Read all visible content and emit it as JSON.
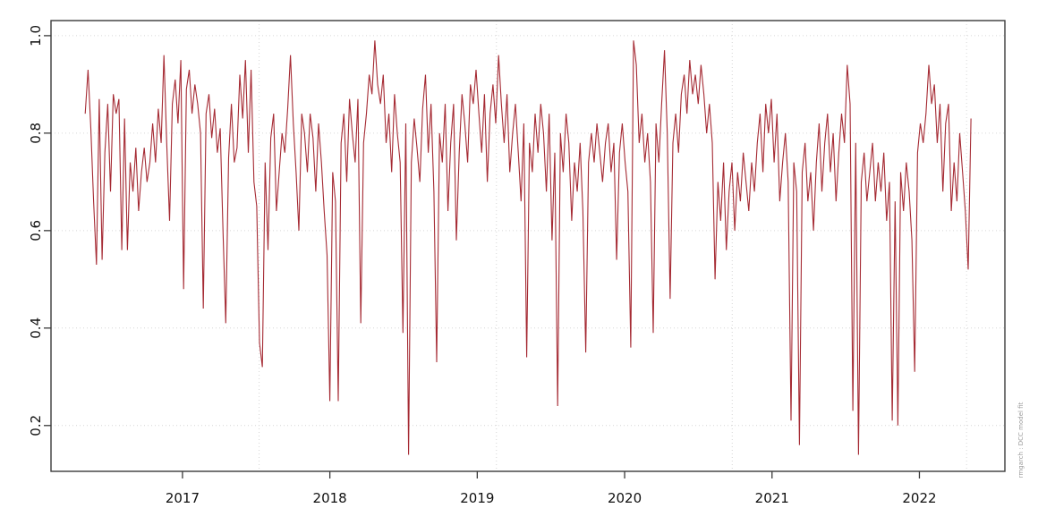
{
  "figure": {
    "background": "#ffffff",
    "watermark": "rmgarch  : DCC model fit",
    "watermark_color": "#9a9a9a"
  },
  "chart_data": {
    "type": "line",
    "title": "",
    "xlabel": "",
    "ylabel": "",
    "xlim": [
      2016.108,
      2022.58
    ],
    "ylim": [
      0.106,
      1.031
    ],
    "x_ticks": {
      "values": [
        2017,
        2018,
        2019,
        2020,
        2021,
        2022
      ],
      "labels": [
        "2017",
        "2018",
        "2019",
        "2020",
        "2021",
        "2022"
      ]
    },
    "y_ticks": {
      "values": [
        0.2,
        0.4,
        0.6,
        0.8,
        1.0
      ],
      "labels": [
        "0.2",
        "0.4",
        "0.6",
        "0.8",
        "1.0"
      ]
    },
    "grid": {
      "on": true,
      "style": "dotted",
      "color": "#d6d6d6",
      "x_values": [
        2017.52,
        2019.13,
        2020.73,
        2022.32
      ],
      "y_values": [
        0.2,
        0.4,
        0.6,
        0.8,
        1.0
      ]
    },
    "axis_color": "#3a3a3a",
    "tick_label_color": "#111111",
    "legend": "none",
    "series": [
      {
        "name": "dcc-conditional-correlation",
        "color": "#a52a33",
        "x_start": 2016.34,
        "x_step": 0.019079,
        "values": [
          0.84,
          0.93,
          0.81,
          0.66,
          0.53,
          0.87,
          0.54,
          0.76,
          0.86,
          0.68,
          0.88,
          0.84,
          0.87,
          0.56,
          0.83,
          0.56,
          0.74,
          0.68,
          0.77,
          0.64,
          0.72,
          0.77,
          0.7,
          0.74,
          0.82,
          0.74,
          0.85,
          0.78,
          0.96,
          0.78,
          0.62,
          0.86,
          0.91,
          0.82,
          0.95,
          0.48,
          0.89,
          0.93,
          0.84,
          0.9,
          0.86,
          0.8,
          0.44,
          0.84,
          0.88,
          0.79,
          0.85,
          0.76,
          0.81,
          0.6,
          0.41,
          0.75,
          0.86,
          0.74,
          0.77,
          0.92,
          0.83,
          0.95,
          0.76,
          0.93,
          0.7,
          0.65,
          0.37,
          0.32,
          0.74,
          0.56,
          0.79,
          0.84,
          0.64,
          0.72,
          0.8,
          0.76,
          0.85,
          0.96,
          0.82,
          0.72,
          0.6,
          0.84,
          0.8,
          0.72,
          0.84,
          0.79,
          0.68,
          0.82,
          0.74,
          0.64,
          0.55,
          0.25,
          0.72,
          0.66,
          0.25,
          0.78,
          0.84,
          0.7,
          0.87,
          0.8,
          0.74,
          0.87,
          0.41,
          0.78,
          0.84,
          0.92,
          0.88,
          0.99,
          0.9,
          0.86,
          0.92,
          0.78,
          0.84,
          0.72,
          0.88,
          0.8,
          0.74,
          0.39,
          0.82,
          0.14,
          0.74,
          0.83,
          0.77,
          0.7,
          0.85,
          0.92,
          0.76,
          0.86,
          0.68,
          0.33,
          0.8,
          0.74,
          0.86,
          0.64,
          0.78,
          0.86,
          0.58,
          0.76,
          0.88,
          0.82,
          0.74,
          0.9,
          0.86,
          0.93,
          0.84,
          0.76,
          0.88,
          0.7,
          0.84,
          0.9,
          0.82,
          0.96,
          0.86,
          0.78,
          0.88,
          0.72,
          0.8,
          0.86,
          0.76,
          0.66,
          0.82,
          0.34,
          0.78,
          0.72,
          0.84,
          0.76,
          0.86,
          0.8,
          0.68,
          0.84,
          0.58,
          0.76,
          0.24,
          0.8,
          0.72,
          0.84,
          0.78,
          0.62,
          0.74,
          0.68,
          0.78,
          0.64,
          0.35,
          0.74,
          0.8,
          0.74,
          0.82,
          0.76,
          0.7,
          0.78,
          0.82,
          0.72,
          0.78,
          0.54,
          0.76,
          0.82,
          0.74,
          0.68,
          0.36,
          0.99,
          0.94,
          0.78,
          0.84,
          0.74,
          0.8,
          0.7,
          0.39,
          0.82,
          0.74,
          0.86,
          0.97,
          0.8,
          0.46,
          0.78,
          0.84,
          0.76,
          0.88,
          0.92,
          0.84,
          0.95,
          0.88,
          0.92,
          0.86,
          0.94,
          0.88,
          0.8,
          0.86,
          0.78,
          0.5,
          0.7,
          0.62,
          0.74,
          0.56,
          0.68,
          0.74,
          0.6,
          0.72,
          0.66,
          0.76,
          0.7,
          0.64,
          0.74,
          0.68,
          0.78,
          0.84,
          0.72,
          0.86,
          0.8,
          0.87,
          0.74,
          0.84,
          0.66,
          0.74,
          0.8,
          0.7,
          0.21,
          0.74,
          0.68,
          0.16,
          0.72,
          0.78,
          0.66,
          0.72,
          0.6,
          0.74,
          0.82,
          0.68,
          0.78,
          0.84,
          0.72,
          0.8,
          0.66,
          0.76,
          0.84,
          0.78,
          0.94,
          0.86,
          0.23,
          0.78,
          0.14,
          0.7,
          0.76,
          0.66,
          0.72,
          0.78,
          0.66,
          0.74,
          0.68,
          0.76,
          0.62,
          0.7,
          0.21,
          0.66,
          0.2,
          0.72,
          0.64,
          0.74,
          0.68,
          0.58,
          0.31,
          0.76,
          0.82,
          0.78,
          0.84,
          0.94,
          0.86,
          0.9,
          0.78,
          0.86,
          0.68,
          0.82,
          0.86,
          0.64,
          0.74,
          0.66,
          0.8,
          0.72,
          0.64,
          0.52,
          0.83
        ]
      }
    ]
  }
}
